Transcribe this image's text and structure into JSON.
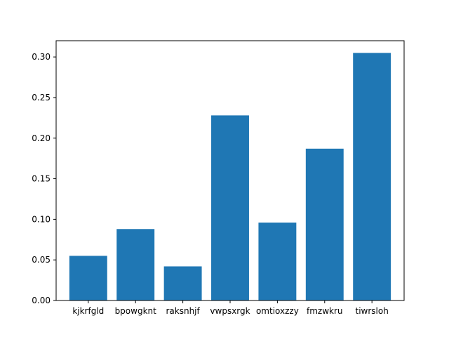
{
  "chart_data": {
    "type": "bar",
    "categories": [
      "kjkrfgld",
      "bpowgknt",
      "raksnhjf",
      "vwpsxrgk",
      "omtioxzzy",
      "fmzwkru",
      "tiwrsloh"
    ],
    "values": [
      0.055,
      0.088,
      0.042,
      0.228,
      0.096,
      0.187,
      0.305
    ],
    "title": "",
    "xlabel": "",
    "ylabel": "",
    "ylim": [
      0,
      0.32
    ],
    "yticks": [
      "0.00",
      "0.05",
      "0.10",
      "0.15",
      "0.20",
      "0.25",
      "0.30"
    ],
    "grid": false,
    "bar_color": "#1f77b4"
  }
}
